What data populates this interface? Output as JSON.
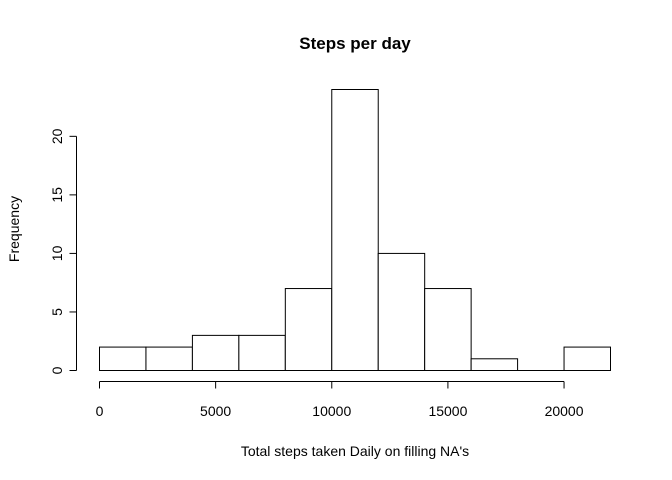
{
  "chart_data": {
    "type": "bar",
    "title": "Steps per day",
    "xlabel": "Total steps taken Daily on filling NA's",
    "ylabel": "Frequency",
    "bin_width": 2000,
    "bins": [
      {
        "from": 0,
        "to": 2000,
        "value": 2
      },
      {
        "from": 2000,
        "to": 4000,
        "value": 2
      },
      {
        "from": 4000,
        "to": 6000,
        "value": 3
      },
      {
        "from": 6000,
        "to": 8000,
        "value": 3
      },
      {
        "from": 8000,
        "to": 10000,
        "value": 7
      },
      {
        "from": 10000,
        "to": 12000,
        "value": 24
      },
      {
        "from": 12000,
        "to": 14000,
        "value": 10
      },
      {
        "from": 14000,
        "to": 16000,
        "value": 7
      },
      {
        "from": 16000,
        "to": 18000,
        "value": 1
      },
      {
        "from": 18000,
        "to": 20000,
        "value": 0
      },
      {
        "from": 20000,
        "to": 22000,
        "value": 2
      }
    ],
    "xlim": [
      0,
      22000
    ],
    "ylim": [
      0,
      24
    ],
    "x_ticks": [
      0,
      5000,
      10000,
      15000,
      20000
    ],
    "x_tick_labels": [
      "0",
      "5000",
      "10000",
      "15000",
      "20000"
    ],
    "y_ticks": [
      0,
      5,
      10,
      15,
      20
    ],
    "y_tick_labels": [
      "0",
      "5",
      "10",
      "15",
      "20"
    ],
    "grid": false,
    "legend": "none",
    "colors": {
      "bar_fill": "#ffffff",
      "bar_stroke": "#000000",
      "text": "#000000"
    }
  }
}
